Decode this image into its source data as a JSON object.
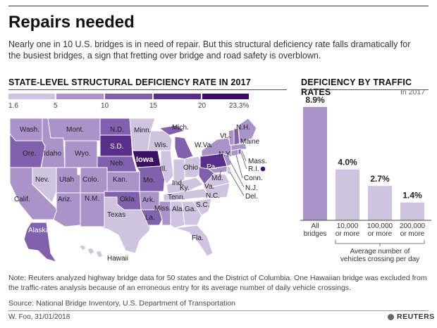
{
  "title": "Repairs needed",
  "subtitle": "Nearly one in 10 U.S. bridges is in need of repair. But this structural deficiency rate falls dramatically for the busiest bridges, a sign that fretting over bridge and road safety is overblown.",
  "colors": {
    "scale": [
      "#cfc3e0",
      "#a993c8",
      "#8161ad",
      "#5a2f8c",
      "#3c0f66"
    ],
    "bar": "#a993c8",
    "bar_light": "#cfc3e0"
  },
  "map": {
    "section_title": "STATE-LEVEL STRUCTURAL DEFICIENCY RATE IN 2017",
    "legend_ticks": [
      "1.6",
      "5",
      "10",
      "15",
      "20",
      "23.3%"
    ],
    "legend_breaks": [
      1.6,
      5,
      10,
      15,
      20,
      23.3
    ],
    "state_labels": [
      "Wash.",
      "Mont.",
      "N.D.",
      "Minn.",
      "Mich.",
      "N.H.",
      "Vt.",
      "Maine",
      "Ore.",
      "Idaho",
      "Wyo.",
      "S.D.",
      "Wis.",
      "W.Va.",
      "N.Y.",
      "Mass.",
      "Iowa",
      "Pa.",
      "R.I.",
      "Nev.",
      "Utah",
      "Colo.",
      "Neb.",
      "Ill.",
      "Ind.",
      "Ohio",
      "Conn.",
      "Md.",
      "Va.",
      "N.J.",
      "Calif.",
      "Ariz.",
      "N.M.",
      "Kan.",
      "Mo.",
      "Ky.",
      "Tenn.",
      "N.C.",
      "Del.",
      "Okla.",
      "Ark.",
      "S.C.",
      "Texas",
      "La.",
      "Miss.",
      "Ala.",
      "Ga.",
      "Fla.",
      "Alaska",
      "Hawaii"
    ]
  },
  "chart_data": {
    "type": "bar",
    "title": "DEFICIENCY BY TRAFFIC RATES",
    "subtitle": "In 2017",
    "categories": [
      "All bridges",
      "10,000 or more",
      "100,000 or more",
      "200,000 or more"
    ],
    "category_lines": [
      [
        "All",
        "bridges"
      ],
      [
        "10,000",
        "or more"
      ],
      [
        "100,000",
        "or more"
      ],
      [
        "200,000",
        "or more"
      ]
    ],
    "values": [
      8.9,
      4.0,
      2.7,
      1.4
    ],
    "value_labels": [
      "8.9%",
      "4.0%",
      "2.7%",
      "1.4%"
    ],
    "axis_note": "Average number of vehicles crossing per day",
    "axis_note_lines": [
      "Average number of",
      "vehicles crossing per day"
    ],
    "ylim": [
      0,
      8.9
    ]
  },
  "footer": {
    "note": "Note: Reuters analyzed highway bridge data for 50 states and the District of Columbia. One Hawaiian bridge was excluded from the traffic-rates analysis because of an erroneous entry for its average number of daily vehicle crossings.",
    "source": "Source: National Bridge Inventory, U.S. Department of Transportation",
    "credit": "W. Foo, 31/01/2018",
    "brand": "REUTERS"
  }
}
